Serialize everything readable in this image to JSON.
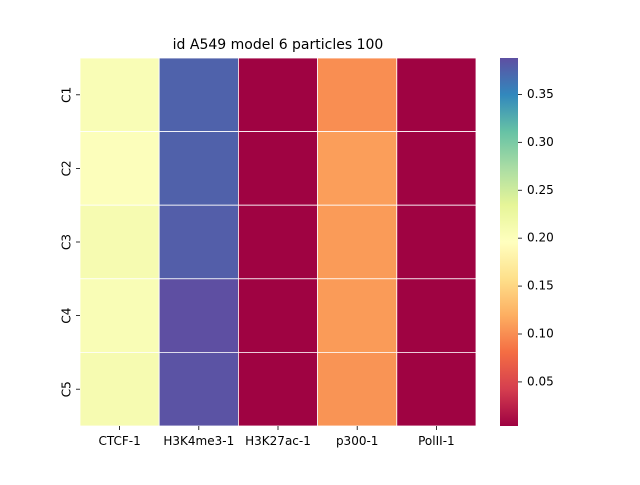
{
  "chart_data": {
    "type": "heatmap",
    "title": "id A549 model 6 particles 100",
    "xlabel": "",
    "ylabel": "",
    "columns": [
      "CTCF-1",
      "H3K4me3-1",
      "H3K27ac-1",
      "p300-1",
      "PolII-1"
    ],
    "rows": [
      "C1",
      "C2",
      "C3",
      "C4",
      "C5"
    ],
    "values": [
      [
        0.205,
        0.375,
        0.005,
        0.1,
        0.005
      ],
      [
        0.2,
        0.376,
        0.005,
        0.11,
        0.005
      ],
      [
        0.21,
        0.378,
        0.005,
        0.108,
        0.005
      ],
      [
        0.205,
        0.388,
        0.005,
        0.108,
        0.005
      ],
      [
        0.21,
        0.385,
        0.005,
        0.104,
        0.005
      ]
    ],
    "colorbar": {
      "colormap": "Spectral",
      "range": [
        0.004,
        0.388
      ],
      "ticks": [
        "0.05",
        "0.10",
        "0.15",
        "0.20",
        "0.25",
        "0.30",
        "0.35"
      ]
    },
    "grid_lines": true
  }
}
